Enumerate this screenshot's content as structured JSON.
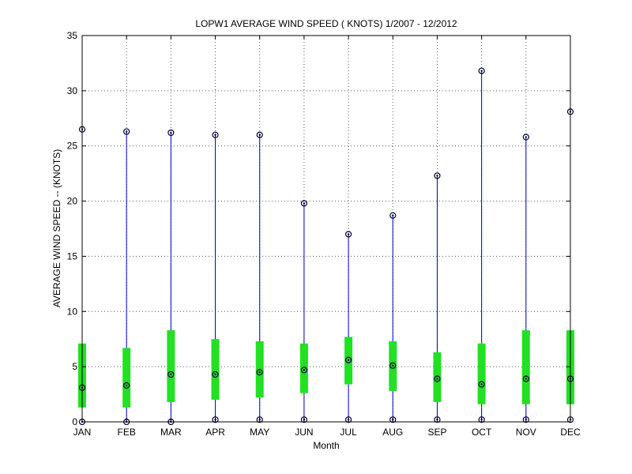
{
  "chart_data": {
    "type": "box",
    "title": "LOPW1  AVERAGE WIND SPEED ( KNOTS) 1/2007 - 12/2012",
    "xlabel": "Month",
    "ylabel": "AVERAGE WIND SPEED -- (KNOTS)",
    "ylim": [
      0,
      35
    ],
    "yticks": [
      "0",
      "5",
      "10",
      "15",
      "20",
      "25",
      "30",
      "35"
    ],
    "grid": true,
    "categories": [
      "JAN",
      "FEB",
      "MAR",
      "APR",
      "MAY",
      "JUN",
      "JUL",
      "AUG",
      "SEP",
      "OCT",
      "NOV",
      "DEC"
    ],
    "series": [
      {
        "min": [
          0.0,
          0.0,
          0.0,
          0.2,
          0.2,
          0.2,
          0.2,
          0.2,
          0.2,
          0.2,
          0.2,
          0.2
        ],
        "q1": [
          1.3,
          1.3,
          1.8,
          2.0,
          2.2,
          2.6,
          3.4,
          2.8,
          1.8,
          1.6,
          1.6,
          1.6
        ],
        "median": [
          3.1,
          3.3,
          4.3,
          4.3,
          4.5,
          4.7,
          5.6,
          5.1,
          3.9,
          3.4,
          3.9,
          3.9
        ],
        "q3": [
          7.1,
          6.7,
          8.3,
          7.5,
          7.3,
          7.1,
          7.7,
          7.3,
          6.3,
          7.1,
          8.3,
          8.3
        ],
        "max": [
          26.5,
          26.3,
          26.2,
          26.0,
          26.0,
          19.8,
          17.0,
          18.7,
          22.3,
          31.8,
          25.8,
          28.1
        ]
      }
    ],
    "colors": {
      "whisker": "#0000cc",
      "box": "#22e022",
      "marker": "#000033",
      "grid": "#555555",
      "axis": "#000000"
    }
  }
}
